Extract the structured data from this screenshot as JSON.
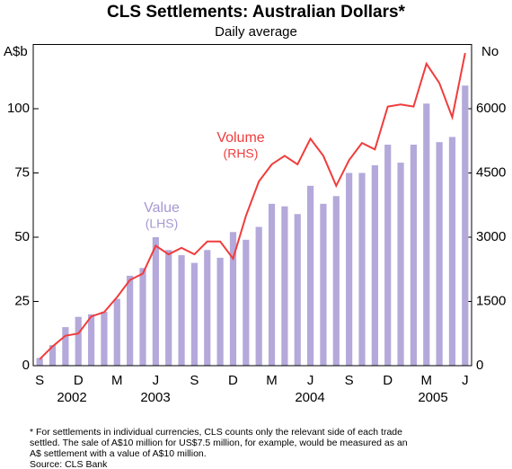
{
  "chart_data": {
    "type": "bar_line",
    "title": "CLS Settlements: Australian Dollars*",
    "subtitle": "Daily average",
    "y_label": "A$b",
    "y2_label": "No",
    "categories": [
      "S",
      null,
      null,
      "D",
      null,
      null,
      "M",
      null,
      null,
      "J",
      null,
      null,
      "S",
      null,
      null,
      "D",
      null,
      null,
      "M",
      null,
      null,
      "J",
      null,
      null,
      "S",
      null,
      null,
      "D",
      null,
      null,
      "M",
      null,
      null,
      "J"
    ],
    "year_labels": [
      "2002",
      "2003",
      "2004",
      "2005"
    ],
    "series": [
      {
        "name": "Value",
        "annotation": "(LHS)",
        "type": "bar",
        "color": "#b4a9da",
        "values": [
          3,
          8,
          15,
          19,
          20,
          21,
          26,
          35,
          38,
          50,
          45,
          43,
          40,
          45,
          42,
          52,
          49,
          54,
          63,
          62,
          59,
          70,
          63,
          66,
          75,
          75,
          78,
          86,
          79,
          86,
          102,
          87,
          89,
          109
        ]
      },
      {
        "name": "Volume",
        "annotation": "(RHS)",
        "type": "line",
        "color": "#f03c3c",
        "axis": "y2",
        "values": [
          150,
          450,
          700,
          750,
          1150,
          1250,
          1600,
          2000,
          2150,
          2800,
          2600,
          2750,
          2600,
          2900,
          2900,
          2500,
          3500,
          4300,
          4700,
          4900,
          4700,
          5300,
          4900,
          4200,
          4800,
          5200,
          5050,
          6050,
          6100,
          6050,
          7050,
          6600,
          5800,
          7300
        ]
      }
    ],
    "ylim": [
      0,
      125
    ],
    "yticks": [
      0,
      25,
      50,
      75,
      100
    ],
    "y2lim": [
      0,
      7500
    ],
    "y2ticks": [
      0,
      1500,
      3000,
      4500,
      6000
    ],
    "notes": [
      "* For settlements in individual currencies, CLS counts only the relevant side of each trade",
      "settled. The sale of A$10 million for US$7.5 million, for example, would be measured as an",
      "A$ settlement with a value of A$10 million."
    ],
    "source": "Source: CLS Bank"
  }
}
